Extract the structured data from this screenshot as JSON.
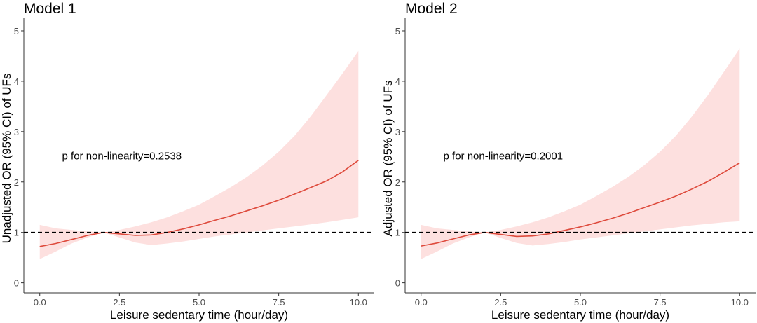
{
  "figure": {
    "colors": {
      "curve": "#de4a3c",
      "band": "#fde0df",
      "reference_line": "#000000",
      "axis": "#333333",
      "tick_text": "#4d4d4d"
    }
  },
  "chart_data": [
    {
      "type": "line",
      "title": "Model 1",
      "xlabel": "Leisure sedentary time (hour/day)",
      "ylabel": "Unadjusted OR (95% CI) of UFs",
      "xlim": [
        -0.5,
        10.5
      ],
      "ylim": [
        -0.2,
        5.25
      ],
      "x_ticks": [
        0,
        2.5,
        5,
        7.5,
        10
      ],
      "x_tick_labels": [
        "0.0",
        "2.5",
        "5.0",
        "7.5",
        "10.0"
      ],
      "y_ticks": [
        0,
        1,
        2,
        3,
        4,
        5
      ],
      "y_tick_labels": [
        "0",
        "1",
        "2",
        "3",
        "4",
        "5"
      ],
      "reference_line": {
        "y": 1,
        "style": "dashed"
      },
      "annotation": "p for non-linearity=0.2538",
      "annotation_pos": [
        0.7,
        2.45
      ],
      "grid": false,
      "series": [
        {
          "x": [
            0,
            0.5,
            1.0,
            1.5,
            2.0,
            2.5,
            3.0,
            3.5,
            4.0,
            4.5,
            5.0,
            5.5,
            6.0,
            6.5,
            7.0,
            7.5,
            8.0,
            8.5,
            9.0,
            9.5,
            10.0
          ],
          "y": [
            0.72,
            0.78,
            0.86,
            0.94,
            1.0,
            0.97,
            0.94,
            0.95,
            1.0,
            1.07,
            1.15,
            1.24,
            1.33,
            1.43,
            1.53,
            1.64,
            1.76,
            1.89,
            2.02,
            2.2,
            2.43
          ],
          "ci_lower": [
            0.47,
            0.62,
            0.78,
            0.9,
            1.0,
            0.9,
            0.8,
            0.75,
            0.78,
            0.82,
            0.87,
            0.92,
            0.96,
            1.0,
            1.04,
            1.08,
            1.12,
            1.16,
            1.2,
            1.25,
            1.3
          ],
          "ci_upper": [
            1.15,
            1.08,
            1.05,
            1.02,
            1.0,
            1.05,
            1.12,
            1.2,
            1.3,
            1.42,
            1.55,
            1.72,
            1.9,
            2.1,
            2.33,
            2.6,
            2.92,
            3.3,
            3.72,
            4.15,
            4.6
          ]
        }
      ]
    },
    {
      "type": "line",
      "title": "Model 2",
      "xlabel": "Leisure sedentary time (hour/day)",
      "ylabel": "Adjusted OR (95% CI) of UFs",
      "xlim": [
        -0.5,
        10.5
      ],
      "ylim": [
        -0.2,
        5.25
      ],
      "x_ticks": [
        0,
        2.5,
        5,
        7.5,
        10
      ],
      "x_tick_labels": [
        "0.0",
        "2.5",
        "5.0",
        "7.5",
        "10.0"
      ],
      "y_ticks": [
        0,
        1,
        2,
        3,
        4,
        5
      ],
      "y_tick_labels": [
        "0",
        "1",
        "2",
        "3",
        "4",
        "5"
      ],
      "reference_line": {
        "y": 1,
        "style": "dashed"
      },
      "annotation": "p for non-linearity=0.2001",
      "annotation_pos": [
        0.7,
        2.45
      ],
      "grid": false,
      "series": [
        {
          "x": [
            0,
            0.5,
            1.0,
            1.5,
            2.0,
            2.5,
            3.0,
            3.5,
            4.0,
            4.5,
            5.0,
            5.5,
            6.0,
            6.5,
            7.0,
            7.5,
            8.0,
            8.5,
            9.0,
            9.5,
            10.0
          ],
          "y": [
            0.73,
            0.79,
            0.87,
            0.95,
            1.0,
            0.96,
            0.92,
            0.93,
            0.97,
            1.04,
            1.11,
            1.19,
            1.28,
            1.38,
            1.49,
            1.6,
            1.72,
            1.86,
            2.01,
            2.19,
            2.38
          ],
          "ci_lower": [
            0.47,
            0.62,
            0.78,
            0.9,
            1.0,
            0.89,
            0.79,
            0.74,
            0.77,
            0.81,
            0.86,
            0.9,
            0.94,
            0.98,
            1.02,
            1.06,
            1.1,
            1.14,
            1.17,
            1.2,
            1.22
          ],
          "ci_upper": [
            1.15,
            1.08,
            1.05,
            1.02,
            1.0,
            1.05,
            1.12,
            1.2,
            1.3,
            1.42,
            1.55,
            1.72,
            1.9,
            2.1,
            2.33,
            2.6,
            2.92,
            3.3,
            3.72,
            4.18,
            4.65
          ]
        }
      ]
    }
  ]
}
